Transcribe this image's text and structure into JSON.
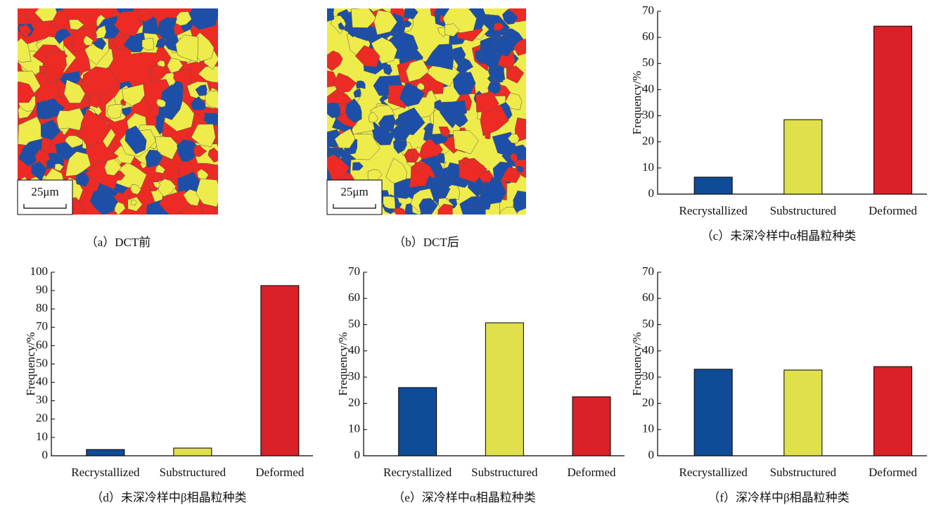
{
  "micrographs": [
    {
      "scale_bar": "25μm",
      "caption": "（a）DCT前"
    },
    {
      "scale_bar": "25μm",
      "caption": "（b）DCT后"
    }
  ],
  "chart_data": [
    {
      "type": "bar",
      "caption": "（c）未深冷样中α相晶粒种类",
      "ylabel": "Frequency/%",
      "categories": [
        "Recrystallized",
        "Substructured",
        "Deformed"
      ],
      "values": [
        6.5,
        28.5,
        64.3
      ],
      "colors": [
        "#0f4c97",
        "#e0e04c",
        "#d92127"
      ],
      "ylim": [
        0,
        70
      ],
      "yticks": [
        0,
        10,
        20,
        30,
        40,
        50,
        60,
        70
      ]
    },
    {
      "type": "bar",
      "caption": "（d）未深冷样中β相晶粒种类",
      "ylabel": "Frequency/%",
      "categories": [
        "Recrystallized",
        "Substructured",
        "Deformed"
      ],
      "values": [
        3.4,
        4.2,
        92.7
      ],
      "colors": [
        "#0f4c97",
        "#e0e04c",
        "#d92127"
      ],
      "ylim": [
        0,
        100
      ],
      "yticks": [
        0,
        10,
        20,
        30,
        40,
        50,
        60,
        70,
        80,
        90,
        100
      ]
    },
    {
      "type": "bar",
      "caption": "（e）深冷样中α相晶粒种类",
      "ylabel": "Frequency/%",
      "categories": [
        "Recrystallized",
        "Substructured",
        "Deformed"
      ],
      "values": [
        26.0,
        50.7,
        22.5
      ],
      "colors": [
        "#0f4c97",
        "#e0e04c",
        "#d92127"
      ],
      "ylim": [
        0,
        70
      ],
      "yticks": [
        0,
        10,
        20,
        30,
        40,
        50,
        60,
        70
      ]
    },
    {
      "type": "bar",
      "caption": "（f）深冷样中β相晶粒种类",
      "ylabel": "Frequency/%",
      "categories": [
        "Recrystallized",
        "Substructured",
        "Deformed"
      ],
      "values": [
        33.0,
        32.7,
        34.0
      ],
      "colors": [
        "#0f4c97",
        "#e0e04c",
        "#d92127"
      ],
      "ylim": [
        0,
        70
      ],
      "yticks": [
        0,
        10,
        20,
        30,
        40,
        50,
        60,
        70
      ]
    }
  ]
}
